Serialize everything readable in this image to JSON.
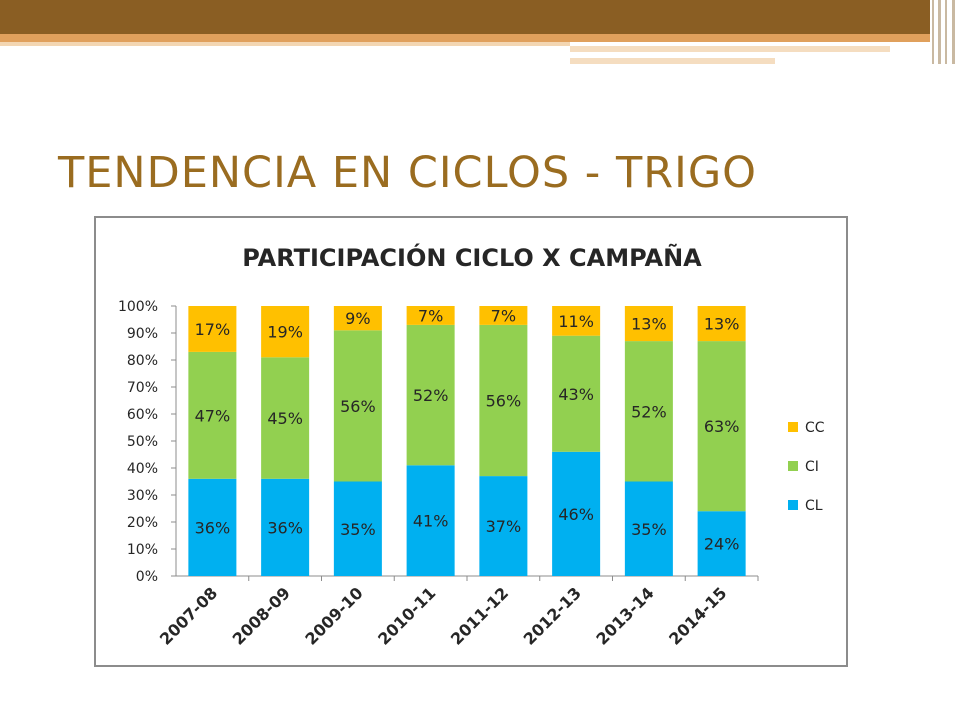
{
  "slide": {
    "title": "TENDENCIA EN CICLOS - TRIGO"
  },
  "colors": {
    "top_band": "#8a5e23",
    "accent_stripe": "#e0a05c",
    "title_text": "#9a6c20",
    "CC": "#ffc000",
    "CI": "#92d050",
    "CL": "#00b0f0"
  },
  "chart_data": {
    "type": "bar",
    "stacked": true,
    "percent_stacked": true,
    "title": "PARTICIPACIÓN CICLO X CAMPAÑA",
    "categories": [
      "2007-08",
      "2008-09",
      "2009-10",
      "2010-11",
      "2011-12",
      "2012-13",
      "2013-14",
      "2014-15"
    ],
    "series": [
      {
        "name": "CL",
        "color": "#00b0f0",
        "values": [
          36,
          36,
          35,
          41,
          37,
          46,
          35,
          24
        ],
        "labels": [
          "36%",
          "36%",
          "35%",
          "41%",
          "37%",
          "46%",
          "35%",
          "24%"
        ]
      },
      {
        "name": "CI",
        "color": "#92d050",
        "values": [
          47,
          45,
          56,
          52,
          56,
          43,
          52,
          63
        ],
        "labels": [
          "47%",
          "45%",
          "56%",
          "52%",
          "56%",
          "43%",
          "52%",
          "63%"
        ]
      },
      {
        "name": "CC",
        "color": "#ffc000",
        "values": [
          17,
          19,
          9,
          7,
          7,
          11,
          13,
          13
        ],
        "labels": [
          "17%",
          "19%",
          "9%",
          "7%",
          "7%",
          "11%",
          "13%",
          "13%"
        ]
      }
    ],
    "y_ticks": [
      "0%",
      "10%",
      "20%",
      "30%",
      "40%",
      "50%",
      "60%",
      "70%",
      "80%",
      "90%",
      "100%"
    ],
    "ylim": [
      0,
      100
    ],
    "grid": false,
    "legend": {
      "position": "right",
      "order": [
        "CC",
        "CI",
        "CL"
      ]
    }
  }
}
